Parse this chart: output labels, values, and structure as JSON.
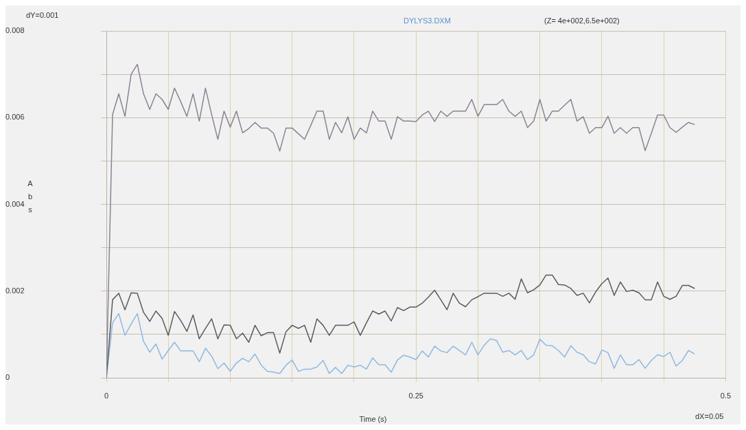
{
  "chart_data": {
    "type": "line",
    "title": "DYLYS3.DXM",
    "subtitle": "(Z= 4e+002,6.5e+002)",
    "xlabel": "Time (s)",
    "ylabel": "Abs",
    "annotations": [
      "dY=0.001",
      "dX=0.05"
    ],
    "x": [
      0,
      0.005,
      0.01,
      0.015,
      0.02,
      0.025,
      0.03,
      0.035,
      0.04,
      0.045,
      0.05,
      0.055,
      0.06,
      0.065,
      0.07,
      0.075,
      0.08,
      0.085,
      0.09,
      0.095,
      0.1,
      0.105,
      0.11,
      0.115,
      0.12,
      0.125,
      0.13,
      0.135,
      0.14,
      0.145,
      0.15,
      0.155,
      0.16,
      0.165,
      0.17,
      0.175,
      0.18,
      0.185,
      0.19,
      0.195,
      0.2,
      0.205,
      0.21,
      0.215,
      0.22,
      0.225,
      0.23,
      0.235,
      0.24,
      0.245,
      0.25,
      0.255,
      0.26,
      0.265,
      0.27,
      0.275,
      0.28,
      0.285,
      0.29,
      0.295,
      0.3,
      0.305,
      0.31,
      0.315,
      0.32,
      0.325,
      0.33,
      0.335,
      0.34,
      0.345,
      0.35,
      0.355,
      0.36,
      0.365,
      0.37,
      0.375,
      0.38,
      0.385,
      0.39,
      0.395,
      0.4,
      0.405,
      0.41,
      0.415,
      0.42,
      0.425,
      0.43,
      0.435,
      0.44,
      0.445,
      0.45,
      0.455,
      0.46,
      0.465,
      0.47,
      0.475
    ],
    "series": [
      {
        "color": "#8a8294",
        "values": [
          0,
          0.00607,
          0.00655,
          0.00603,
          0.007,
          0.00723,
          0.00655,
          0.00619,
          0.00655,
          0.00642,
          0.00619,
          0.00668,
          0.00637,
          0.00603,
          0.00655,
          0.00592,
          0.00668,
          0.00607,
          0.0055,
          0.00615,
          0.00578,
          0.00615,
          0.00565,
          0.00575,
          0.00589,
          0.00576,
          0.00576,
          0.00564,
          0.00523,
          0.00576,
          0.00576,
          0.00563,
          0.0055,
          0.00582,
          0.00615,
          0.00615,
          0.0055,
          0.00589,
          0.00565,
          0.00602,
          0.0055,
          0.00576,
          0.00565,
          0.00615,
          0.00592,
          0.00592,
          0.0055,
          0.00602,
          0.00592,
          0.00592,
          0.00591,
          0.00606,
          0.00615,
          0.00591,
          0.00615,
          0.00603,
          0.00615,
          0.00615,
          0.00615,
          0.00642,
          0.00603,
          0.0063,
          0.0063,
          0.0063,
          0.00642,
          0.00615,
          0.00603,
          0.00615,
          0.00577,
          0.00592,
          0.00642,
          0.00592,
          0.00615,
          0.00615,
          0.00629,
          0.00642,
          0.00592,
          0.00602,
          0.00564,
          0.00577,
          0.00577,
          0.00603,
          0.00564,
          0.00577,
          0.00564,
          0.00577,
          0.00577,
          0.00524,
          0.00564,
          0.00606,
          0.00606,
          0.00577,
          0.00566,
          0.00578,
          0.00589,
          0.00584
        ]
      },
      {
        "color": "#5a5a5a",
        "values": [
          0,
          0.0018,
          0.00195,
          0.00157,
          0.00196,
          0.00195,
          0.00151,
          0.0013,
          0.00154,
          0.00137,
          0.00098,
          0.00153,
          0.00132,
          0.00107,
          0.00145,
          0.0009,
          0.00114,
          0.00136,
          0.0009,
          0.00122,
          0.00121,
          0.0009,
          0.00103,
          0.00082,
          0.00121,
          0.00097,
          0.00104,
          0.00104,
          0.00057,
          0.00106,
          0.00121,
          0.00114,
          0.00121,
          0.00082,
          0.00136,
          0.00121,
          0.00098,
          0.00121,
          0.00121,
          0.00121,
          0.00129,
          0.00098,
          0.00127,
          0.00154,
          0.00147,
          0.00154,
          0.00131,
          0.00162,
          0.00155,
          0.00163,
          0.00163,
          0.00172,
          0.00186,
          0.00202,
          0.0018,
          0.00157,
          0.00195,
          0.00172,
          0.00164,
          0.0018,
          0.00187,
          0.00195,
          0.00195,
          0.00195,
          0.00188,
          0.00195,
          0.00181,
          0.00228,
          0.00196,
          0.00203,
          0.00214,
          0.00237,
          0.00237,
          0.00215,
          0.00214,
          0.00206,
          0.0019,
          0.00195,
          0.00173,
          0.00198,
          0.00217,
          0.0023,
          0.0019,
          0.00221,
          0.00199,
          0.00202,
          0.00196,
          0.0018,
          0.0018,
          0.00221,
          0.00188,
          0.00181,
          0.00188,
          0.00213,
          0.00213,
          0.00206
        ]
      },
      {
        "color": "#8fb8e0",
        "values": [
          0,
          0.00127,
          0.00148,
          0.00098,
          0.00124,
          0.00148,
          0.00084,
          0.00059,
          0.00078,
          0.00043,
          0.00063,
          0.00082,
          0.00062,
          0.00062,
          0.00062,
          0.00037,
          0.00068,
          0.0005,
          0.00021,
          0.00034,
          0.00015,
          0.00034,
          0.00045,
          0.00037,
          0.00055,
          0.00029,
          0.00015,
          0.00013,
          0.0001,
          0.00029,
          0.00041,
          0.00015,
          0.0002,
          0.0002,
          0.00025,
          0.0004,
          0.0001,
          0.00024,
          0.0001,
          0.00029,
          0.00025,
          0.00029,
          0.0002,
          0.00046,
          0.0003,
          0.0003,
          0.00013,
          0.00041,
          0.00052,
          0.00048,
          0.00042,
          0.00062,
          0.00048,
          0.00073,
          0.00062,
          0.00058,
          0.00073,
          0.00063,
          0.00053,
          0.00082,
          0.00053,
          0.00075,
          0.0009,
          0.00086,
          0.00059,
          0.00063,
          0.00053,
          0.00063,
          0.00042,
          0.00053,
          0.00089,
          0.00075,
          0.00074,
          0.00063,
          0.00048,
          0.00074,
          0.00059,
          0.00053,
          0.00037,
          0.00032,
          0.00064,
          0.00058,
          0.00022,
          0.00053,
          0.0003,
          0.0003,
          0.00042,
          0.00022,
          0.0004,
          0.00053,
          0.00049,
          0.00059,
          0.00027,
          0.0004,
          0.00063,
          0.00055
        ]
      }
    ],
    "xlim": [
      0,
      0.5
    ],
    "xticks": [
      0,
      {
        "value": 0.05,
        "label": null
      },
      {
        "value": 0.1,
        "label": null
      },
      {
        "value": 0.15,
        "label": null
      },
      {
        "value": 0.2,
        "label": null
      },
      0.25,
      {
        "value": 0.3,
        "label": null
      },
      {
        "value": 0.35,
        "label": null
      },
      {
        "value": 0.4,
        "label": null
      },
      {
        "value": 0.45,
        "label": null
      },
      0.5
    ],
    "ylim": [
      0,
      0.008
    ],
    "yticks": [
      0,
      {
        "value": 0.001,
        "label": null
      },
      0.002,
      {
        "value": 0.003,
        "label": null
      },
      0.004,
      {
        "value": 0.005,
        "label": null
      },
      0.006,
      {
        "value": 0.007,
        "label": null
      },
      0.008
    ],
    "grid": true,
    "legend": false,
    "marker": "none",
    "line_style": "solid"
  }
}
